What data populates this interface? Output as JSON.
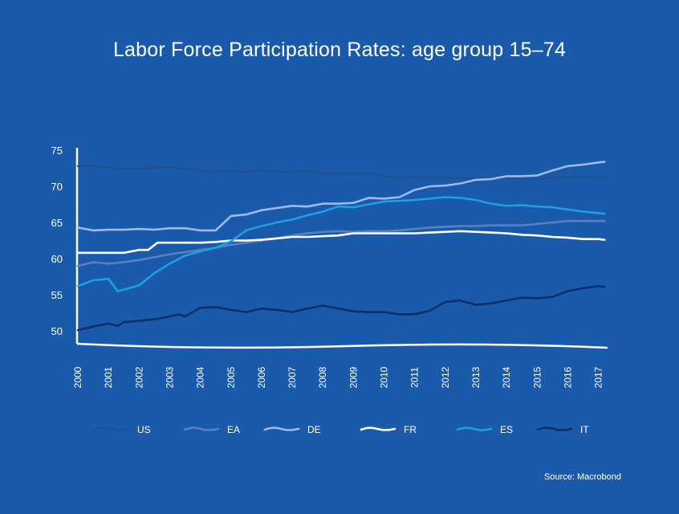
{
  "title": "Labor Force Participation Rates: age group 15–74",
  "source": "Source: Macrobond",
  "chart_data": {
    "type": "line",
    "title": "Labor Force Participation Rates: age group 15–74",
    "xlabel": "",
    "ylabel": "",
    "xlim": [
      2000,
      2017.3
    ],
    "ylim": [
      49,
      75
    ],
    "y_ticks": [
      50,
      55,
      60,
      65,
      70,
      75
    ],
    "x_ticks": [
      "2000",
      "2001",
      "2002",
      "2003",
      "2004",
      "2005",
      "2006",
      "2007",
      "2008",
      "2009",
      "2010",
      "2011",
      "2012",
      "2013",
      "2014",
      "2015",
      "2016",
      "2017"
    ],
    "grid": false,
    "legend_position": "bottom",
    "series": [
      {
        "name": "US",
        "color": "#1f5293",
        "x": [
          2000,
          2000.5,
          2001,
          2001.5,
          2002,
          2002.5,
          2003,
          2003.5,
          2004,
          2004.5,
          2005,
          2005.5,
          2006,
          2006.5,
          2007,
          2007.5,
          2008,
          2008.5,
          2009,
          2009.5,
          2010,
          2010.5,
          2011,
          2011.5,
          2012,
          2012.5,
          2013,
          2013.5,
          2014,
          2014.5,
          2015,
          2015.5,
          2016,
          2016.5,
          2017,
          2017.2
        ],
        "values": [
          72.8,
          72.8,
          72.6,
          72.4,
          72.4,
          72.6,
          72.7,
          72.4,
          72.1,
          72.0,
          72.2,
          72.0,
          72.2,
          72.1,
          71.9,
          72.1,
          71.8,
          71.8,
          71.7,
          71.8,
          71.4,
          71.2,
          71.3,
          71.2,
          71.2,
          71.1,
          71.1,
          71.1,
          71.2,
          71.1,
          71.0,
          71.2,
          71.3,
          71.3,
          71.2,
          71.2
        ]
      },
      {
        "name": "EA",
        "color": "#5b7fbf",
        "x": [
          2000,
          2000.5,
          2001,
          2001.5,
          2002,
          2002.5,
          2003,
          2003.5,
          2004,
          2004.5,
          2005,
          2005.5,
          2006,
          2006.5,
          2007,
          2007.5,
          2008,
          2008.5,
          2009,
          2009.5,
          2010,
          2010.5,
          2011,
          2011.5,
          2012,
          2012.5,
          2013,
          2013.5,
          2014,
          2014.5,
          2015,
          2015.5,
          2016,
          2016.5,
          2017,
          2017.2
        ],
        "values": [
          59.0,
          59.5,
          59.3,
          59.5,
          59.8,
          60.2,
          60.6,
          60.9,
          61.2,
          61.5,
          61.9,
          62.2,
          62.5,
          62.8,
          63.2,
          63.5,
          63.7,
          63.8,
          63.7,
          63.8,
          63.8,
          63.9,
          64.1,
          64.3,
          64.4,
          64.5,
          64.5,
          64.6,
          64.6,
          64.6,
          64.8,
          65.0,
          65.2,
          65.2,
          65.2,
          65.2
        ]
      },
      {
        "name": "DE",
        "color": "#a3b8ea",
        "x": [
          2000,
          2000.5,
          2001,
          2001.5,
          2002,
          2002.5,
          2003,
          2003.5,
          2004,
          2004.5,
          2005,
          2005.5,
          2006,
          2006.5,
          2007,
          2007.5,
          2008,
          2008.5,
          2009,
          2009.5,
          2010,
          2010.5,
          2011,
          2011.5,
          2012,
          2012.5,
          2013,
          2013.5,
          2014,
          2014.5,
          2015,
          2015.5,
          2016,
          2016.5,
          2017,
          2017.2
        ],
        "values": [
          64.3,
          63.9,
          64.0,
          64.0,
          64.1,
          64.0,
          64.2,
          64.2,
          63.9,
          63.9,
          65.9,
          66.1,
          66.7,
          67.0,
          67.3,
          67.2,
          67.6,
          67.6,
          67.7,
          68.4,
          68.3,
          68.5,
          69.5,
          70.0,
          70.1,
          70.4,
          70.9,
          71.0,
          71.4,
          71.4,
          71.5,
          72.2,
          72.8,
          73.0,
          73.3,
          73.4
        ]
      },
      {
        "name": "FR",
        "color": "#ffffff",
        "x": [
          2000,
          2000.5,
          2001,
          2001.5,
          2002,
          2002.3,
          2002.6,
          2003,
          2003.5,
          2004,
          2004.5,
          2005,
          2005.5,
          2006,
          2006.5,
          2007,
          2007.5,
          2008,
          2008.5,
          2009,
          2009.5,
          2010,
          2010.5,
          2011,
          2011.5,
          2012,
          2012.5,
          2013,
          2013.5,
          2014,
          2014.5,
          2015,
          2015.5,
          2016,
          2016.5,
          2017,
          2017.2
        ],
        "values": [
          60.8,
          60.8,
          60.8,
          60.8,
          61.2,
          61.2,
          62.2,
          62.2,
          62.2,
          62.2,
          62.3,
          62.5,
          62.5,
          62.6,
          62.8,
          63.0,
          63.0,
          63.1,
          63.2,
          63.5,
          63.5,
          63.5,
          63.5,
          63.5,
          63.6,
          63.7,
          63.8,
          63.7,
          63.6,
          63.5,
          63.3,
          63.2,
          63.0,
          62.9,
          62.7,
          62.7,
          62.6
        ]
      },
      {
        "name": "ES",
        "color": "#1f9fe3",
        "x": [
          2000,
          2000.5,
          2001,
          2001.3,
          2001.5,
          2002,
          2002.5,
          2003,
          2003.5,
          2004,
          2004.5,
          2005,
          2005.5,
          2006,
          2006.5,
          2007,
          2007.5,
          2008,
          2008.5,
          2009,
          2009.5,
          2010,
          2010.5,
          2011,
          2011.5,
          2012,
          2012.5,
          2013,
          2013.5,
          2014,
          2014.5,
          2015,
          2015.5,
          2016,
          2016.5,
          2017,
          2017.2
        ],
        "values": [
          56.2,
          57.0,
          57.2,
          55.5,
          55.7,
          56.3,
          58.0,
          59.3,
          60.4,
          61.0,
          61.5,
          62.4,
          63.9,
          64.5,
          65.0,
          65.4,
          66.0,
          66.5,
          67.2,
          67.1,
          67.5,
          67.9,
          68.0,
          68.1,
          68.3,
          68.5,
          68.4,
          68.1,
          67.6,
          67.3,
          67.4,
          67.2,
          67.1,
          66.8,
          66.5,
          66.3,
          66.2
        ]
      },
      {
        "name": "IT",
        "color": "#0f2f66",
        "x": [
          2000,
          2000.5,
          2001,
          2001.3,
          2001.5,
          2002,
          2002.5,
          2003,
          2003.3,
          2003.5,
          2004,
          2004.5,
          2005,
          2005.5,
          2006,
          2006.5,
          2007,
          2007.5,
          2008,
          2008.5,
          2009,
          2009.5,
          2010,
          2010.5,
          2011,
          2011.5,
          2012,
          2012.5,
          2013,
          2013.5,
          2014,
          2014.5,
          2015,
          2015.5,
          2016,
          2016.5,
          2017,
          2017.2
        ],
        "values": [
          50.1,
          50.6,
          51.0,
          50.7,
          51.2,
          51.4,
          51.6,
          52.0,
          52.3,
          52.0,
          53.2,
          53.3,
          52.9,
          52.6,
          53.1,
          52.9,
          52.6,
          53.1,
          53.5,
          53.1,
          52.7,
          52.6,
          52.6,
          52.3,
          52.3,
          52.8,
          54.0,
          54.2,
          53.6,
          53.8,
          54.2,
          54.6,
          54.5,
          54.7,
          55.5,
          55.9,
          56.2,
          56.1
        ]
      }
    ]
  }
}
